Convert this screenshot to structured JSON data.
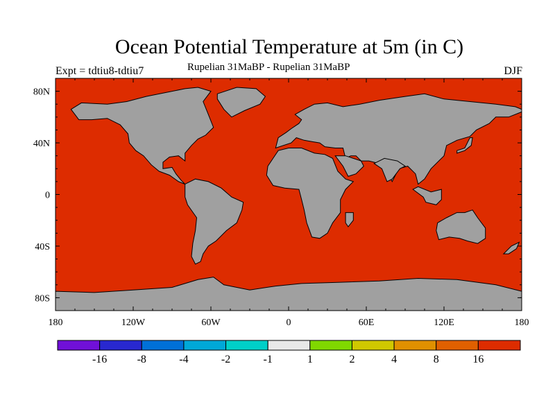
{
  "title": "Ocean Potential Temperature at 5m (in C)",
  "experiment_label": "Expt = tdtiu8-tdtiu7",
  "subtitle": "Rupelian  31MaBP - Rupelian  31MaBP",
  "season": "DJF",
  "colors": {
    "ocean_fill": "#dd2c00",
    "land_fill": "#a0a0a0",
    "coastline": "#000000"
  },
  "map": {
    "projection": "cylindrical equidistant",
    "lon_range": [
      -180,
      180
    ],
    "lat_range": [
      -90,
      90
    ],
    "x_ticks": [
      {
        "lon": -180,
        "label": "180"
      },
      {
        "lon": -120,
        "label": "120W"
      },
      {
        "lon": -60,
        "label": "60W"
      },
      {
        "lon": 0,
        "label": "0"
      },
      {
        "lon": 60,
        "label": "60E"
      },
      {
        "lon": 120,
        "label": "120E"
      },
      {
        "lon": 180,
        "label": "180"
      }
    ],
    "y_ticks": [
      {
        "lat": 80,
        "label": "80N"
      },
      {
        "lat": 40,
        "label": "40N"
      },
      {
        "lat": 0,
        "label": "0"
      },
      {
        "lat": -40,
        "label": "40S"
      },
      {
        "lat": -80,
        "label": "80S"
      }
    ]
  },
  "colorbar": {
    "colors": [
      "#7010d8",
      "#2828d0",
      "#0070d8",
      "#00a8d8",
      "#00d0c8",
      "#e8e8e8",
      "#80d800",
      "#d0c800",
      "#e09000",
      "#e06000",
      "#dd2c00"
    ],
    "labels": [
      "-16",
      "-8",
      "-4",
      "-2",
      "-1",
      "1",
      "2",
      "4",
      "8",
      "16"
    ]
  }
}
